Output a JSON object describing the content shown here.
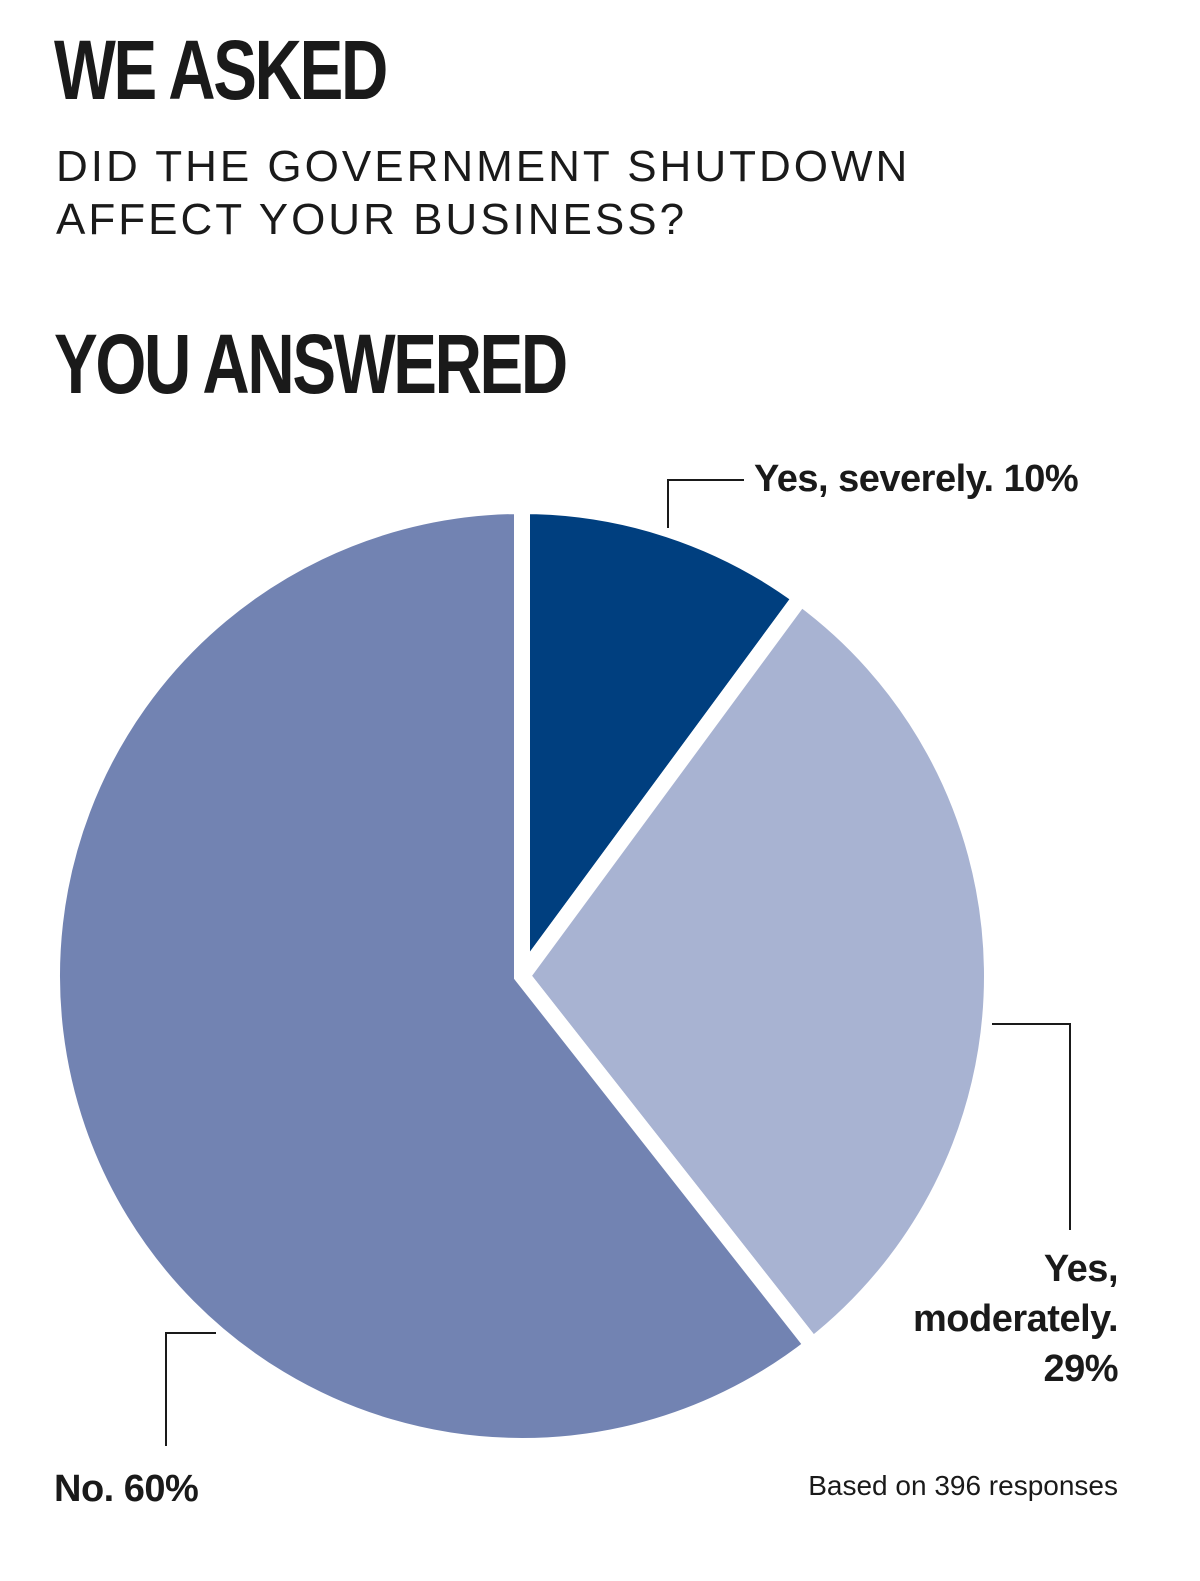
{
  "header": {
    "we_asked": "WE ASKED",
    "question_line1": "DID THE GOVERNMENT SHUTDOWN",
    "question_line2": "AFFECT YOUR BUSINESS?",
    "you_answered": "YOU ANSWERED"
  },
  "chart_data": {
    "type": "pie",
    "title": "",
    "slices": [
      {
        "label": "Yes, severely.",
        "value": 10,
        "value_label": "10%",
        "color": "#003f7f"
      },
      {
        "label": "Yes, moderately.",
        "value": 29,
        "value_label": "29%",
        "color": "#a8b3d2"
      },
      {
        "label": "No.",
        "value": 60,
        "value_label": "60%",
        "color": "#7283b2"
      }
    ],
    "note": "Based on 396 responses"
  },
  "labels": {
    "severe": "Yes, severely. 10%",
    "moderate_line1": "Yes,",
    "moderate_line2": "moderately.",
    "moderate_line3": "29%",
    "no": "No. 60%"
  }
}
